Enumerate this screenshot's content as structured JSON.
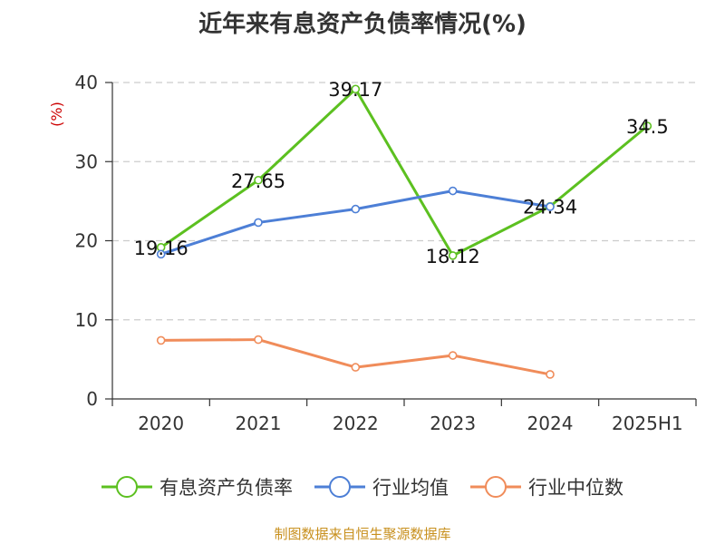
{
  "chart_data": {
    "type": "line",
    "title": "近年来有息资产负债率情况(%)",
    "ylabel": "(%)",
    "xlabel": "",
    "ylim": [
      0,
      40
    ],
    "yticks": [
      0,
      10,
      20,
      30,
      40
    ],
    "grid": true,
    "legend_position": "bottom",
    "categories": [
      "2020",
      "2021",
      "2022",
      "2023",
      "2024",
      "2025H1"
    ],
    "series": [
      {
        "name": "有息资产负债率",
        "color": "#5cc020",
        "values": [
          19.16,
          27.65,
          39.17,
          18.12,
          24.34,
          34.5
        ],
        "show_labels": true
      },
      {
        "name": "行业均值",
        "color": "#4d7fd6",
        "values": [
          18.3,
          22.3,
          24.0,
          26.3,
          24.3,
          null
        ],
        "show_labels": false
      },
      {
        "name": "行业中位数",
        "color": "#f08c5a",
        "values": [
          7.4,
          7.5,
          4.0,
          5.5,
          3.1,
          null
        ],
        "show_labels": false
      }
    ],
    "data_labels": [
      "19.16",
      "27.65",
      "39.17",
      "18.12",
      "24.34",
      "34.5"
    ]
  },
  "source": {
    "text": "制图数据来自恒生聚源数据库",
    "color": "#c8901e"
  },
  "colors": {
    "axis": "#333333",
    "grid": "#cccccc",
    "ylabel": "#cc0000"
  }
}
